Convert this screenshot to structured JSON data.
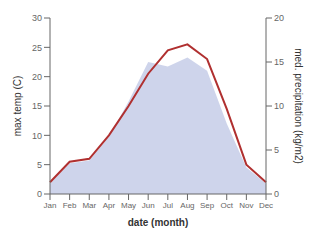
{
  "chart_data": {
    "type": "line",
    "categories": [
      "Jan",
      "Feb",
      "Mar",
      "Apr",
      "May",
      "Jun",
      "Jul",
      "Aug",
      "Sep",
      "Oct",
      "Nov",
      "Dec"
    ],
    "xlabel": "date (month)",
    "ylabel": "max temp (C)",
    "y2label": "med. precipitation (kg/m2)",
    "ylim": [
      0,
      30
    ],
    "yticks": [
      0,
      5,
      10,
      15,
      20,
      25,
      30
    ],
    "y2lim": [
      0,
      20
    ],
    "y2ticks": [
      0,
      5,
      10,
      15,
      20
    ],
    "grid": false,
    "series": [
      {
        "type": "line",
        "color": "#b03030",
        "values": [
          2.0,
          5.5,
          6.0,
          10.0,
          15.0,
          20.5,
          24.5,
          25.5,
          23.0,
          14.5,
          5.0,
          2.0
        ]
      },
      {
        "type": "area",
        "axis": "y2",
        "color": "#c5cce8",
        "values": [
          1.2,
          3.5,
          3.8,
          6.5,
          10.5,
          15.0,
          14.5,
          15.5,
          14.0,
          8.0,
          3.0,
          1.2
        ]
      }
    ]
  }
}
